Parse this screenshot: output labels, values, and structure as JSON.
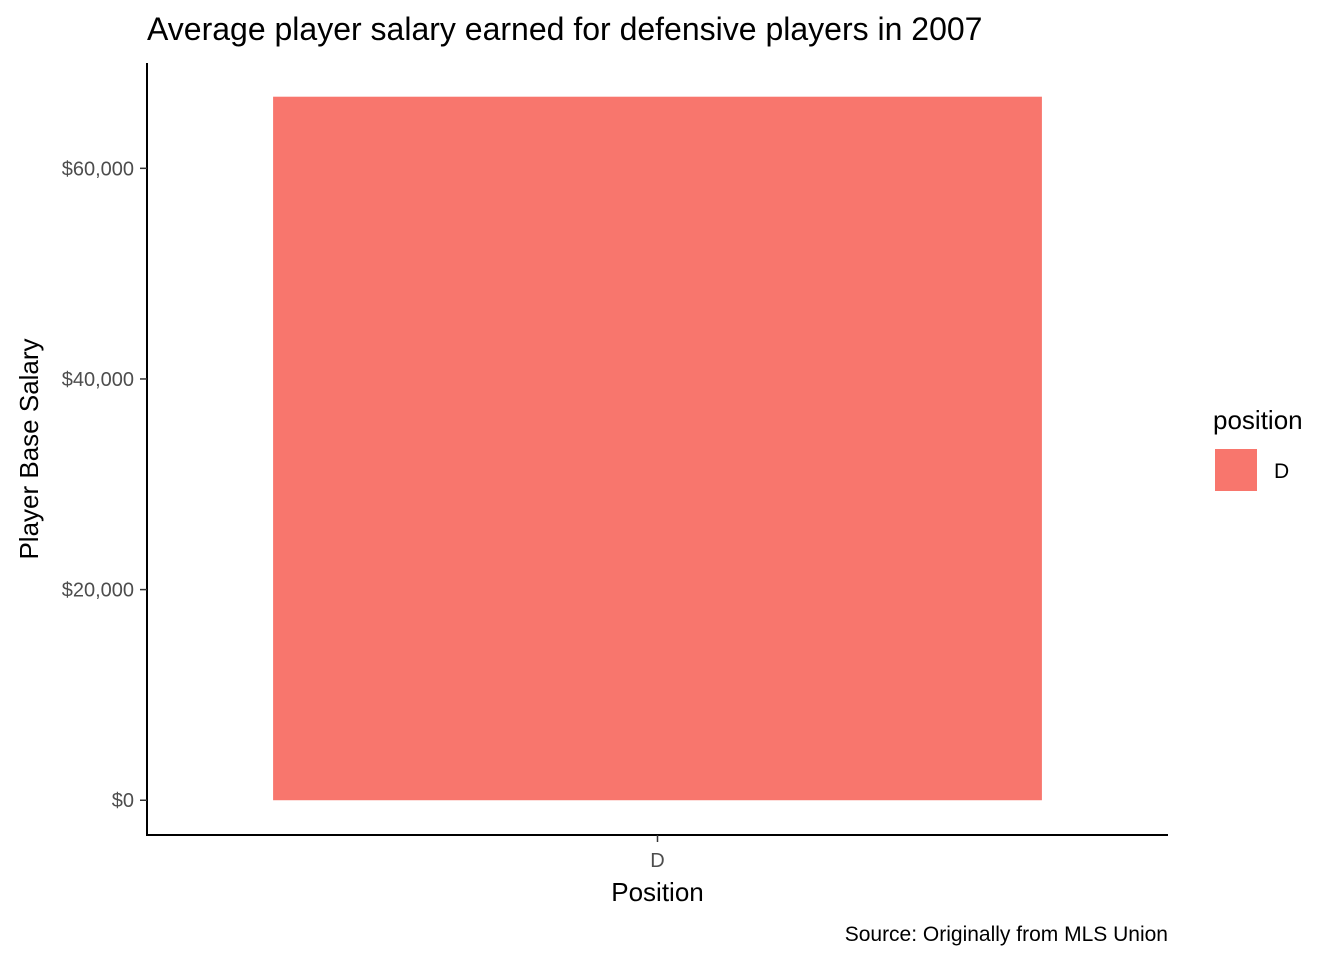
{
  "chart_data": {
    "type": "bar",
    "title": "Average player salary earned for defensive players in 2007",
    "xlabel": "Position",
    "ylabel": "Player Base Salary",
    "categories": [
      "D"
    ],
    "values": [
      66800
    ],
    "ylim": [
      -3300,
      70000
    ],
    "yticks": [
      0,
      20000,
      40000,
      60000
    ],
    "ytick_labels": [
      "$0",
      "$20,000",
      "$40,000",
      "$60,000"
    ],
    "grid": false,
    "legend": {
      "title": "position",
      "placement": "right",
      "entries": [
        {
          "label": "D",
          "color": "#F8766D"
        }
      ]
    },
    "caption": "Source: Originally from MLS Union",
    "bar_color": "#F8766D"
  }
}
